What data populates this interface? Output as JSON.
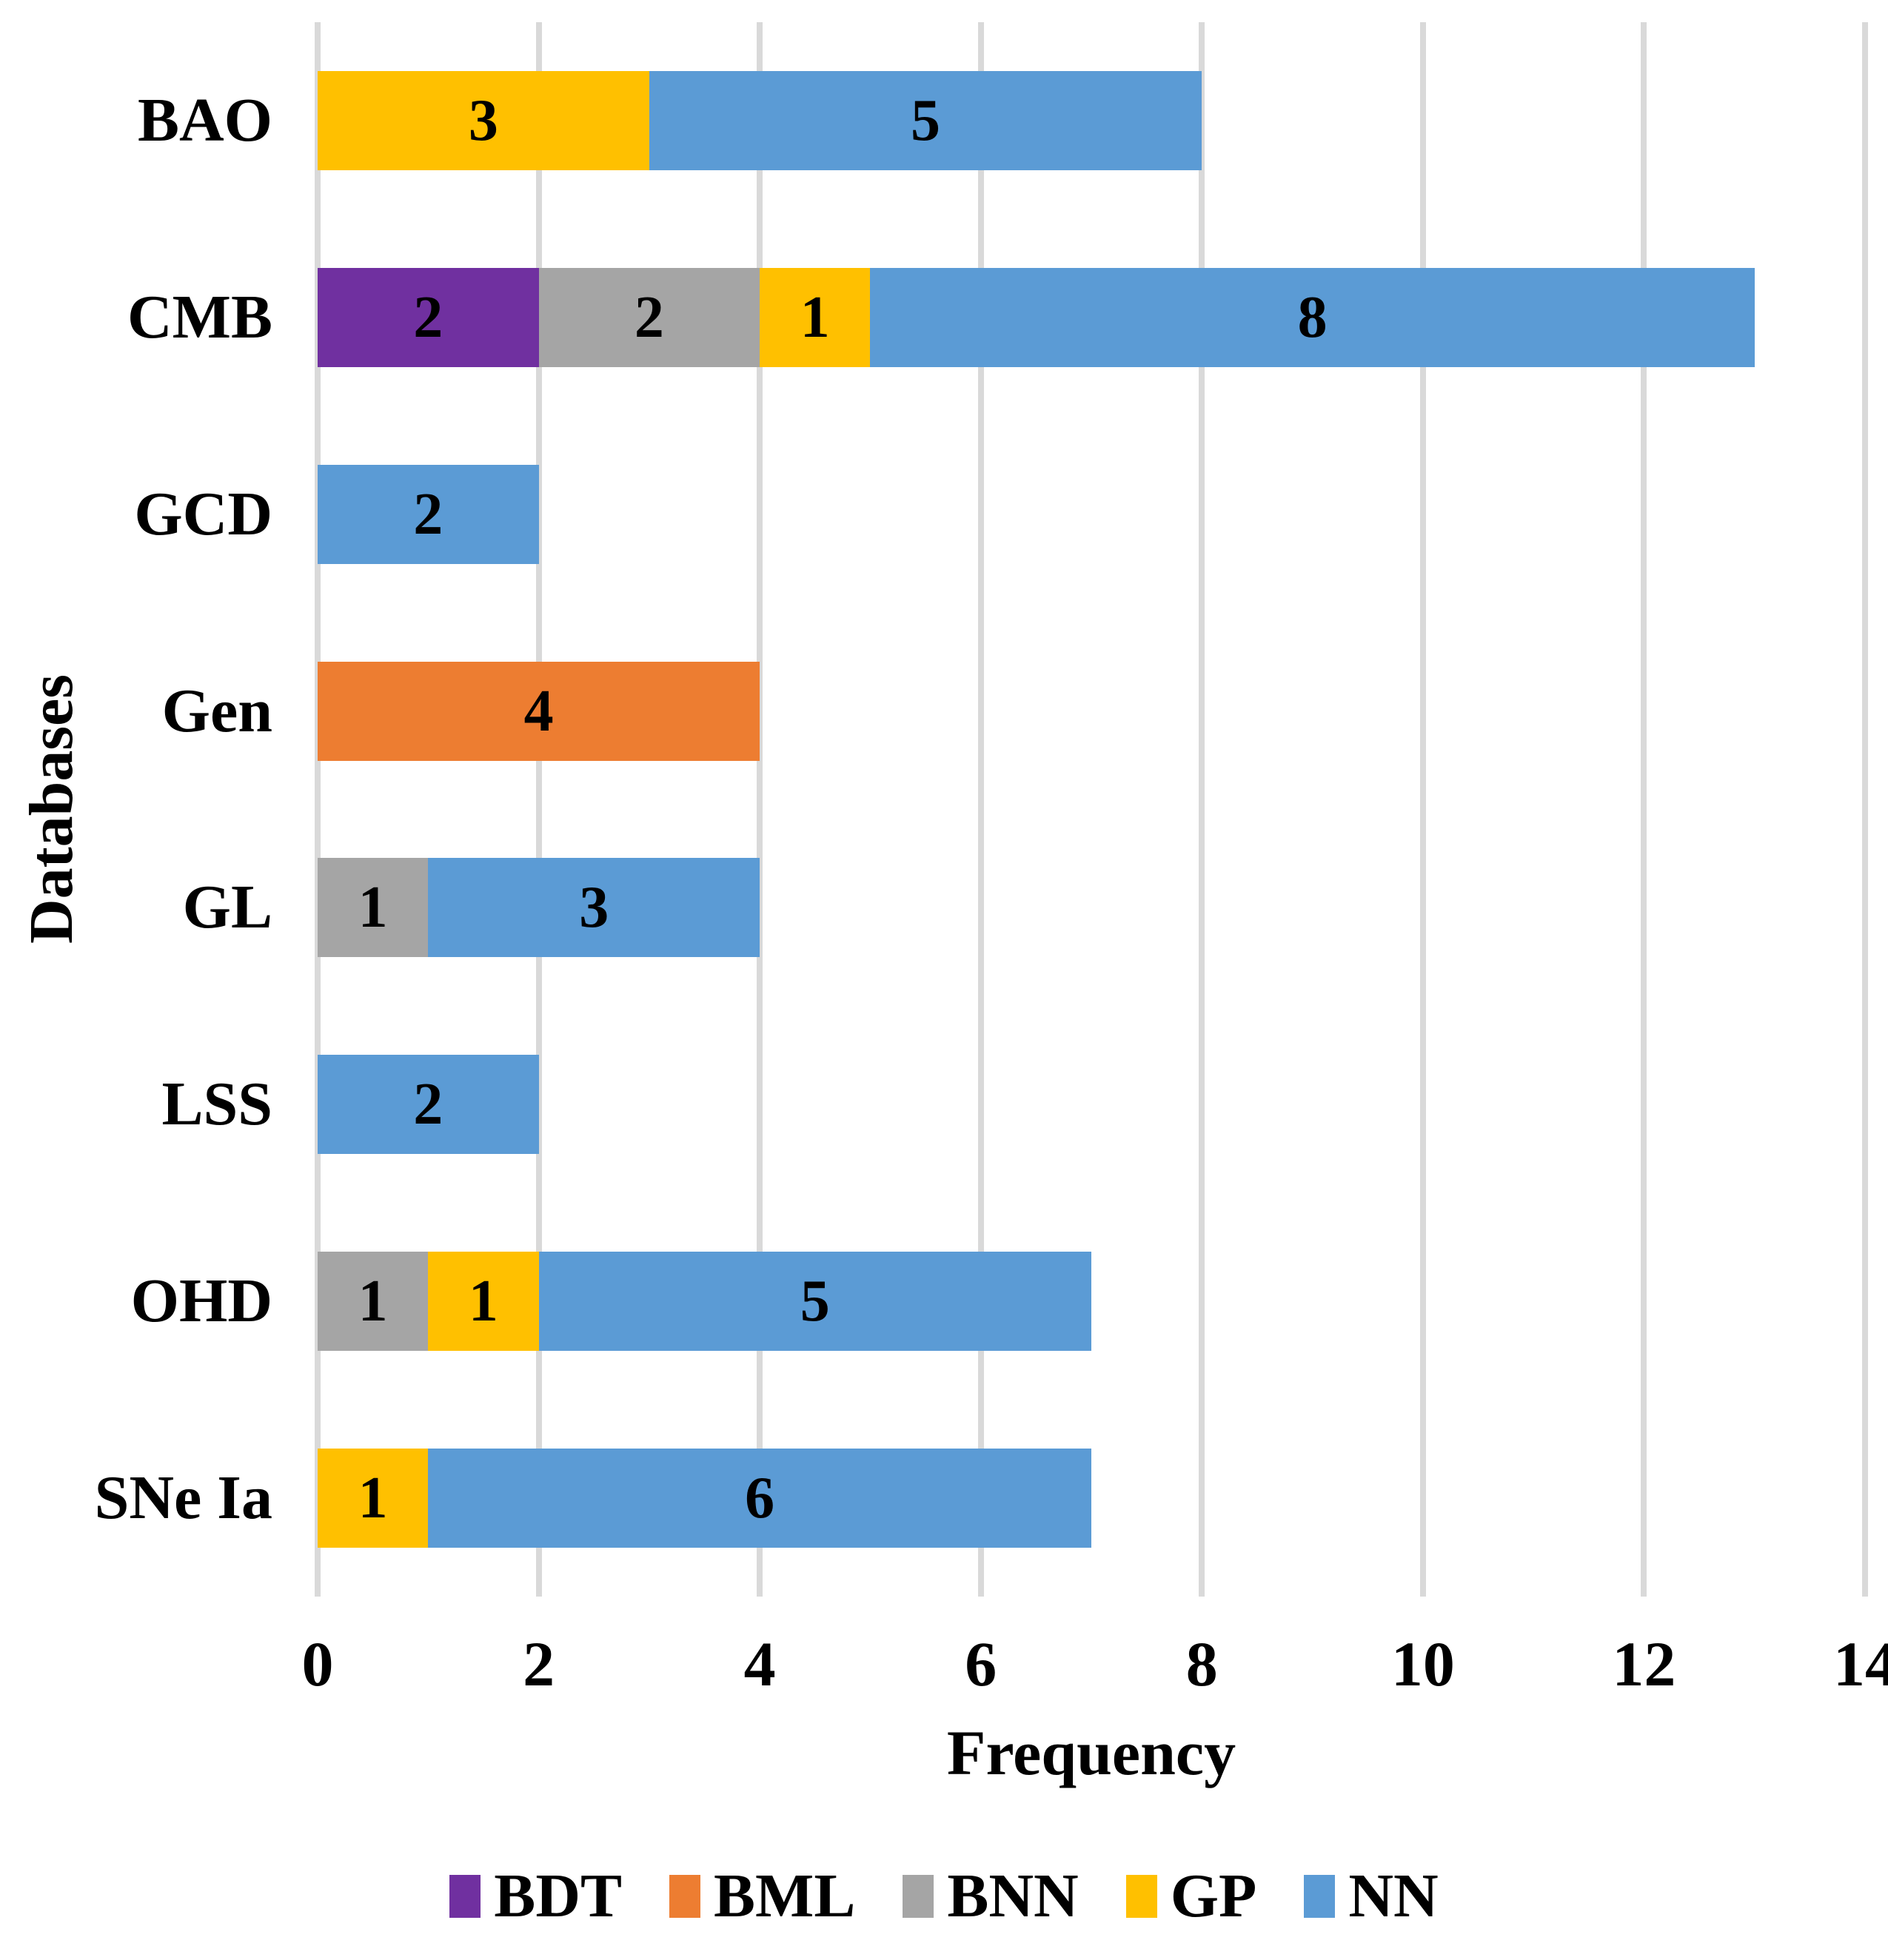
{
  "chart_data": {
    "type": "bar",
    "orientation": "horizontal",
    "stacked": true,
    "title": "",
    "xlabel": "Frequency",
    "ylabel": "Databases",
    "xlim": [
      0,
      14
    ],
    "xticks": [
      0,
      2,
      4,
      6,
      8,
      10,
      12,
      14
    ],
    "grid": true,
    "gridline_color": "#d9d9d9",
    "legend_position": "bottom",
    "categories": [
      "BAO",
      "CMB",
      "GCD",
      "Gen",
      "GL",
      "LSS",
      "OHD",
      "SNe Ia"
    ],
    "series": [
      {
        "name": "BDT",
        "color": "#7030a0",
        "values": [
          0,
          2,
          0,
          0,
          0,
          0,
          0,
          0
        ]
      },
      {
        "name": "BML",
        "color": "#ed7d31",
        "values": [
          0,
          0,
          0,
          4,
          0,
          0,
          0,
          0
        ]
      },
      {
        "name": "BNN",
        "color": "#a5a5a5",
        "values": [
          0,
          2,
          0,
          0,
          1,
          0,
          1,
          0
        ]
      },
      {
        "name": "GP",
        "color": "#ffc000",
        "values": [
          3,
          1,
          0,
          0,
          0,
          0,
          1,
          1
        ]
      },
      {
        "name": "NN",
        "color": "#5b9bd5",
        "values": [
          5,
          8,
          2,
          0,
          3,
          2,
          5,
          6
        ]
      }
    ],
    "bar_labels_shown": true,
    "bar_label_color": "#000000"
  }
}
